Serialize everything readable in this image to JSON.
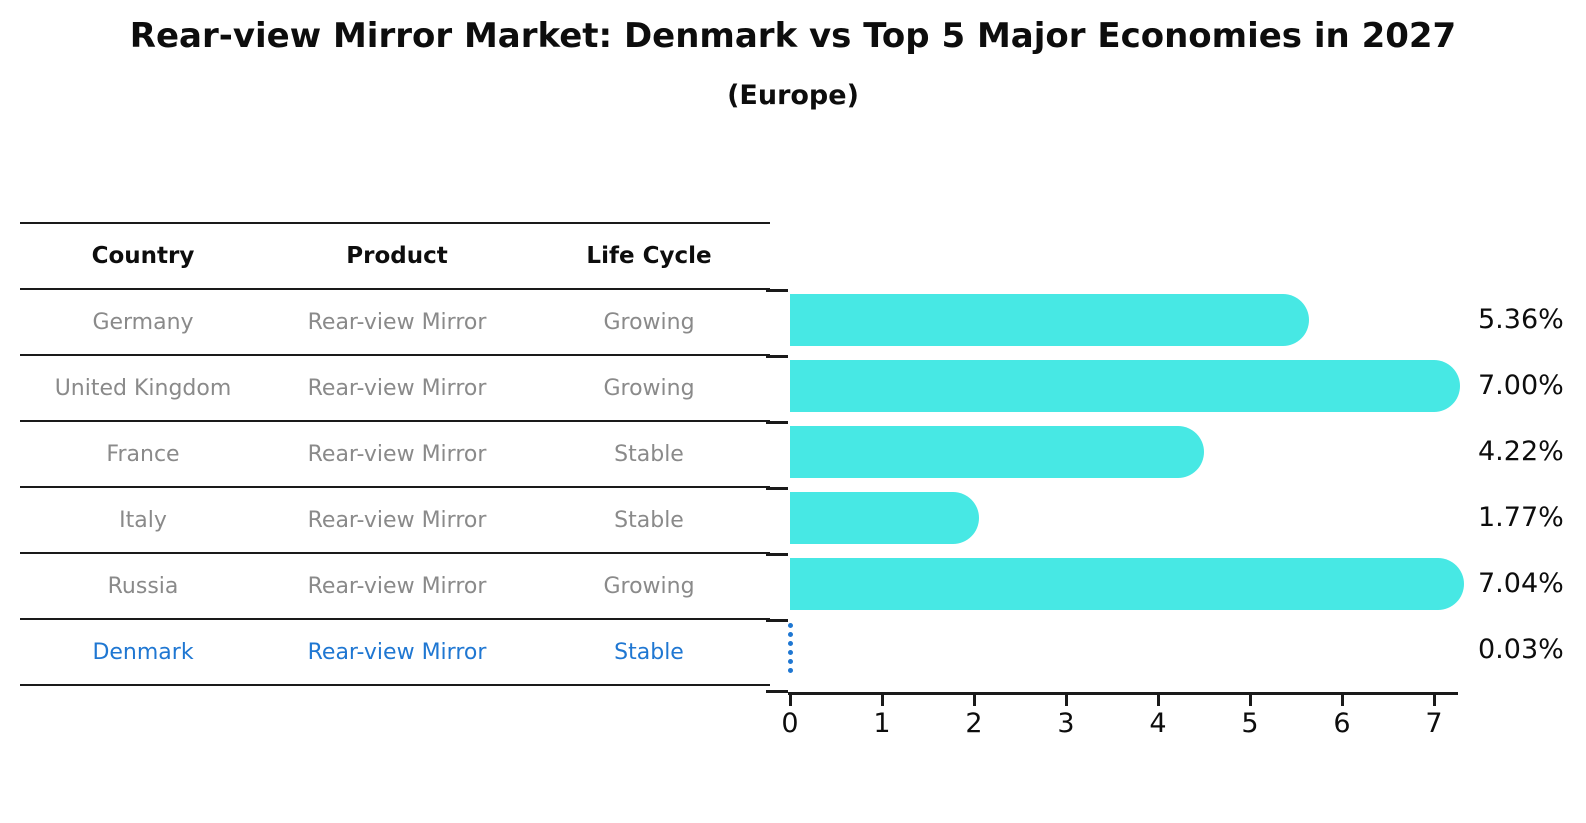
{
  "title": "Rear-view Mirror Market: Denmark vs Top 5 Major Economies in 2027",
  "subtitle": "(Europe)",
  "table": {
    "headers": {
      "country": "Country",
      "product": "Product",
      "life_cycle": "Life Cycle"
    },
    "rows": [
      {
        "country": "Germany",
        "product": "Rear-view Mirror",
        "life_cycle": "Growing"
      },
      {
        "country": "United Kingdom",
        "product": "Rear-view Mirror",
        "life_cycle": "Growing"
      },
      {
        "country": "France",
        "product": "Rear-view Mirror",
        "life_cycle": "Stable"
      },
      {
        "country": "Italy",
        "product": "Rear-view Mirror",
        "life_cycle": "Stable"
      },
      {
        "country": "Russia",
        "product": "Rear-view Mirror",
        "life_cycle": "Growing"
      },
      {
        "country": "Denmark",
        "product": "Rear-view Mirror",
        "life_cycle": "Stable"
      }
    ]
  },
  "chart_data": {
    "type": "bar",
    "orientation": "horizontal",
    "categories": [
      "Germany",
      "United Kingdom",
      "France",
      "Italy",
      "Russia",
      "Denmark"
    ],
    "values": [
      5.36,
      7.0,
      4.22,
      1.77,
      7.04,
      0.03
    ],
    "value_labels": [
      "5.36%",
      "7.00%",
      "4.22%",
      "1.77%",
      "7.04%",
      "0.03%"
    ],
    "xticks": [
      "0",
      "1",
      "2",
      "3",
      "4",
      "5",
      "6",
      "7"
    ],
    "xlim": [
      0,
      7.3
    ],
    "grid": false,
    "legend": "none",
    "bar_color": "#47e8e4",
    "highlight_index": 5,
    "highlight_color": "#1f77d2",
    "highlight_style": "dotted-line"
  },
  "colors": {
    "background": "#ffffff",
    "text": "#0d0d0d",
    "muted_text": "#8a8a8a",
    "table_line": "#1a1a1a",
    "bar": "#47e8e4",
    "highlight": "#1f77d2"
  }
}
